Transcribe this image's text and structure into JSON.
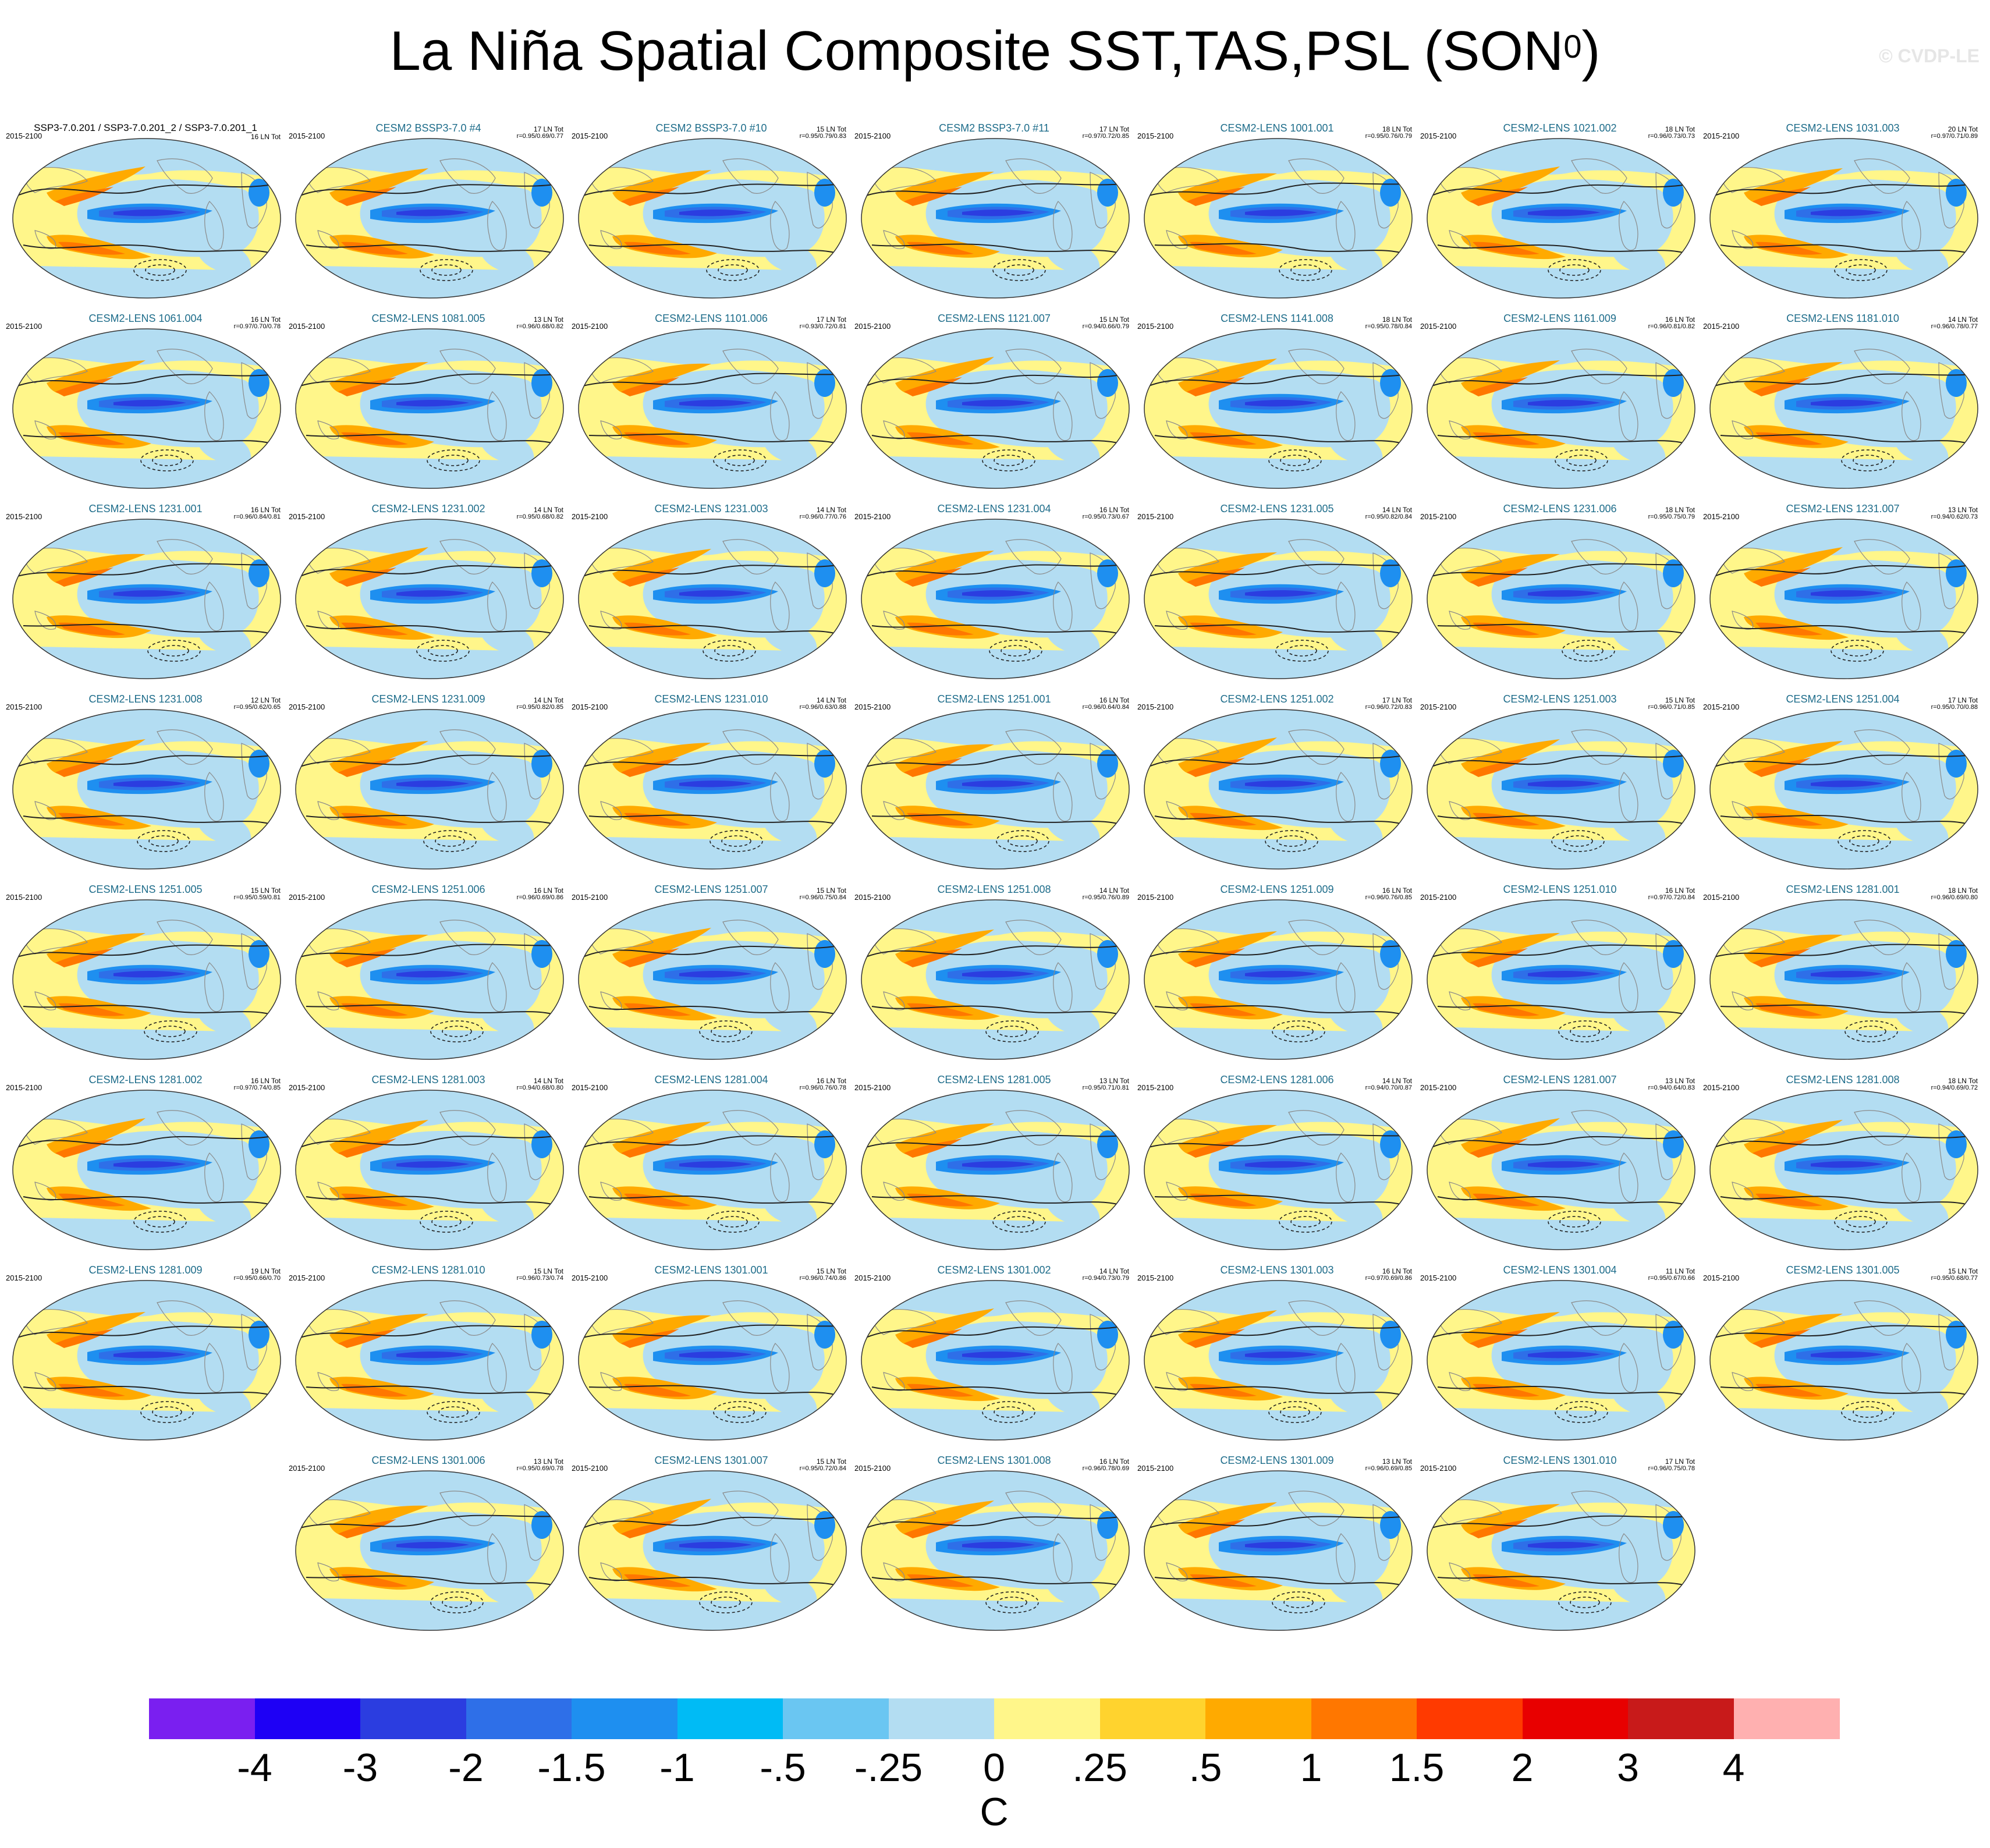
{
  "title": "La Niña Spatial Composite SST,TAS,PSL (SON",
  "title_sup": "0",
  "title_close": ")",
  "watermark": "© CVDP-LE",
  "first_panel_title": "SSP3-7.0.201 / SSP3-7.0.201_2 / SSP3-7.0.201_1",
  "panels": [
    {
      "title": "",
      "period": "2015-2100",
      "count": "16 LN Tot",
      "corr": ""
    },
    {
      "title": "CESM2 BSSP3-7.0 #4",
      "period": "2015-2100",
      "count": "17 LN Tot",
      "corr": "r=0.95/0.69/0.77"
    },
    {
      "title": "CESM2 BSSP3-7.0 #10",
      "period": "2015-2100",
      "count": "15 LN Tot",
      "corr": "r=0.95/0.79/0.83"
    },
    {
      "title": "CESM2 BSSP3-7.0 #11",
      "period": "2015-2100",
      "count": "17 LN Tot",
      "corr": "r=0.97/0.72/0.85"
    },
    {
      "title": "CESM2-LENS 1001.001",
      "period": "2015-2100",
      "count": "18 LN Tot",
      "corr": "r=0.95/0.76/0.79"
    },
    {
      "title": "CESM2-LENS 1021.002",
      "period": "2015-2100",
      "count": "18 LN Tot",
      "corr": "r=0.96/0.73/0.73"
    },
    {
      "title": "CESM2-LENS 1031.003",
      "period": "2015-2100",
      "count": "20 LN Tot",
      "corr": "r=0.97/0.71/0.89"
    },
    {
      "title": "CESM2-LENS 1061.004",
      "period": "2015-2100",
      "count": "16 LN Tot",
      "corr": "r=0.97/0.70/0.78"
    },
    {
      "title": "CESM2-LENS 1081.005",
      "period": "2015-2100",
      "count": "13 LN Tot",
      "corr": "r=0.96/0.68/0.82"
    },
    {
      "title": "CESM2-LENS 1101.006",
      "period": "2015-2100",
      "count": "17 LN Tot",
      "corr": "r=0.93/0.72/0.81"
    },
    {
      "title": "CESM2-LENS 1121.007",
      "period": "2015-2100",
      "count": "15 LN Tot",
      "corr": "r=0.94/0.66/0.79"
    },
    {
      "title": "CESM2-LENS 1141.008",
      "period": "2015-2100",
      "count": "18 LN Tot",
      "corr": "r=0.95/0.78/0.84"
    },
    {
      "title": "CESM2-LENS 1161.009",
      "period": "2015-2100",
      "count": "16 LN Tot",
      "corr": "r=0.96/0.81/0.82"
    },
    {
      "title": "CESM2-LENS 1181.010",
      "period": "2015-2100",
      "count": "14 LN Tot",
      "corr": "r=0.96/0.78/0.77"
    },
    {
      "title": "CESM2-LENS 1231.001",
      "period": "2015-2100",
      "count": "16 LN Tot",
      "corr": "r=0.96/0.84/0.81"
    },
    {
      "title": "CESM2-LENS 1231.002",
      "period": "2015-2100",
      "count": "14 LN Tot",
      "corr": "r=0.95/0.68/0.82"
    },
    {
      "title": "CESM2-LENS 1231.003",
      "period": "2015-2100",
      "count": "14 LN Tot",
      "corr": "r=0.96/0.77/0.76"
    },
    {
      "title": "CESM2-LENS 1231.004",
      "period": "2015-2100",
      "count": "16 LN Tot",
      "corr": "r=0.95/0.73/0.67"
    },
    {
      "title": "CESM2-LENS 1231.005",
      "period": "2015-2100",
      "count": "14 LN Tot",
      "corr": "r=0.95/0.82/0.84"
    },
    {
      "title": "CESM2-LENS 1231.006",
      "period": "2015-2100",
      "count": "18 LN Tot",
      "corr": "r=0.95/0.75/0.79"
    },
    {
      "title": "CESM2-LENS 1231.007",
      "period": "2015-2100",
      "count": "13 LN Tot",
      "corr": "r=0.94/0.62/0.73"
    },
    {
      "title": "CESM2-LENS 1231.008",
      "period": "2015-2100",
      "count": "12 LN Tot",
      "corr": "r=0.95/0.62/0.65"
    },
    {
      "title": "CESM2-LENS 1231.009",
      "period": "2015-2100",
      "count": "14 LN Tot",
      "corr": "r=0.95/0.82/0.85"
    },
    {
      "title": "CESM2-LENS 1231.010",
      "period": "2015-2100",
      "count": "14 LN Tot",
      "corr": "r=0.96/0.63/0.88"
    },
    {
      "title": "CESM2-LENS 1251.001",
      "period": "2015-2100",
      "count": "16 LN Tot",
      "corr": "r=0.96/0.64/0.84"
    },
    {
      "title": "CESM2-LENS 1251.002",
      "period": "2015-2100",
      "count": "17 LN Tot",
      "corr": "r=0.96/0.72/0.83"
    },
    {
      "title": "CESM2-LENS 1251.003",
      "period": "2015-2100",
      "count": "15 LN Tot",
      "corr": "r=0.96/0.71/0.85"
    },
    {
      "title": "CESM2-LENS 1251.004",
      "period": "2015-2100",
      "count": "17 LN Tot",
      "corr": "r=0.95/0.70/0.88"
    },
    {
      "title": "CESM2-LENS 1251.005",
      "period": "2015-2100",
      "count": "15 LN Tot",
      "corr": "r=0.95/0.59/0.81"
    },
    {
      "title": "CESM2-LENS 1251.006",
      "period": "2015-2100",
      "count": "16 LN Tot",
      "corr": "r=0.96/0.69/0.86"
    },
    {
      "title": "CESM2-LENS 1251.007",
      "period": "2015-2100",
      "count": "15 LN Tot",
      "corr": "r=0.96/0.75/0.84"
    },
    {
      "title": "CESM2-LENS 1251.008",
      "period": "2015-2100",
      "count": "14 LN Tot",
      "corr": "r=0.95/0.76/0.89"
    },
    {
      "title": "CESM2-LENS 1251.009",
      "period": "2015-2100",
      "count": "16 LN Tot",
      "corr": "r=0.96/0.76/0.85"
    },
    {
      "title": "CESM2-LENS 1251.010",
      "period": "2015-2100",
      "count": "16 LN Tot",
      "corr": "r=0.97/0.72/0.84"
    },
    {
      "title": "CESM2-LENS 1281.001",
      "period": "2015-2100",
      "count": "18 LN Tot",
      "corr": "r=0.96/0.69/0.80"
    },
    {
      "title": "CESM2-LENS 1281.002",
      "period": "2015-2100",
      "count": "16 LN Tot",
      "corr": "r=0.97/0.74/0.85"
    },
    {
      "title": "CESM2-LENS 1281.003",
      "period": "2015-2100",
      "count": "14 LN Tot",
      "corr": "r=0.94/0.68/0.80"
    },
    {
      "title": "CESM2-LENS 1281.004",
      "period": "2015-2100",
      "count": "16 LN Tot",
      "corr": "r=0.96/0.76/0.78"
    },
    {
      "title": "CESM2-LENS 1281.005",
      "period": "2015-2100",
      "count": "13 LN Tot",
      "corr": "r=0.95/0.71/0.81"
    },
    {
      "title": "CESM2-LENS 1281.006",
      "period": "2015-2100",
      "count": "14 LN Tot",
      "corr": "r=0.94/0.70/0.87"
    },
    {
      "title": "CESM2-LENS 1281.007",
      "period": "2015-2100",
      "count": "13 LN Tot",
      "corr": "r=0.94/0.64/0.83"
    },
    {
      "title": "CESM2-LENS 1281.008",
      "period": "2015-2100",
      "count": "18 LN Tot",
      "corr": "r=0.94/0.69/0.72"
    },
    {
      "title": "CESM2-LENS 1281.009",
      "period": "2015-2100",
      "count": "19 LN Tot",
      "corr": "r=0.95/0.66/0.70"
    },
    {
      "title": "CESM2-LENS 1281.010",
      "period": "2015-2100",
      "count": "15 LN Tot",
      "corr": "r=0.96/0.73/0.74"
    },
    {
      "title": "CESM2-LENS 1301.001",
      "period": "2015-2100",
      "count": "15 LN Tot",
      "corr": "r=0.96/0.74/0.86"
    },
    {
      "title": "CESM2-LENS 1301.002",
      "period": "2015-2100",
      "count": "14 LN Tot",
      "corr": "r=0.94/0.73/0.79"
    },
    {
      "title": "CESM2-LENS 1301.003",
      "period": "2015-2100",
      "count": "16 LN Tot",
      "corr": "r=0.97/0.69/0.86"
    },
    {
      "title": "CESM2-LENS 1301.004",
      "period": "2015-2100",
      "count": "11 LN Tot",
      "corr": "r=0.95/0.67/0.66"
    },
    {
      "title": "CESM2-LENS 1301.005",
      "period": "2015-2100",
      "count": "15 LN Tot",
      "corr": "r=0.95/0.68/0.77"
    },
    {
      "title": "CESM2-LENS 1301.006",
      "period": "2015-2100",
      "count": "13 LN Tot",
      "corr": "r=0.95/0.69/0.78"
    },
    {
      "title": "CESM2-LENS 1301.007",
      "period": "2015-2100",
      "count": "15 LN Tot",
      "corr": "r=0.95/0.72/0.84"
    },
    {
      "title": "CESM2-LENS 1301.008",
      "period": "2015-2100",
      "count": "16 LN Tot",
      "corr": "r=0.96/0.78/0.69"
    },
    {
      "title": "CESM2-LENS 1301.009",
      "period": "2015-2100",
      "count": "13 LN Tot",
      "corr": "r=0.96/0.69/0.85"
    },
    {
      "title": "CESM2-LENS 1301.010",
      "period": "2015-2100",
      "count": "17 LN Tot",
      "corr": "r=0.96/0.75/0.78"
    }
  ],
  "colorbar": {
    "colors": [
      "#7a1ff0",
      "#1e00f5",
      "#2b3de0",
      "#2e6fe8",
      "#1e8ff0",
      "#00bbf5",
      "#6ac6f2",
      "#b3ddf2",
      "#fff68a",
      "#ffd32e",
      "#ffaa00",
      "#ff7700",
      "#ff3a00",
      "#e80000",
      "#c81a1a",
      "#ffb0b0"
    ],
    "labels": [
      "-4",
      "-3",
      "-2",
      "-1.5",
      "-1",
      "-.5",
      "-.25",
      "0",
      ".25",
      ".5",
      "1",
      "1.5",
      "2",
      "3",
      "4"
    ],
    "units": "C"
  }
}
